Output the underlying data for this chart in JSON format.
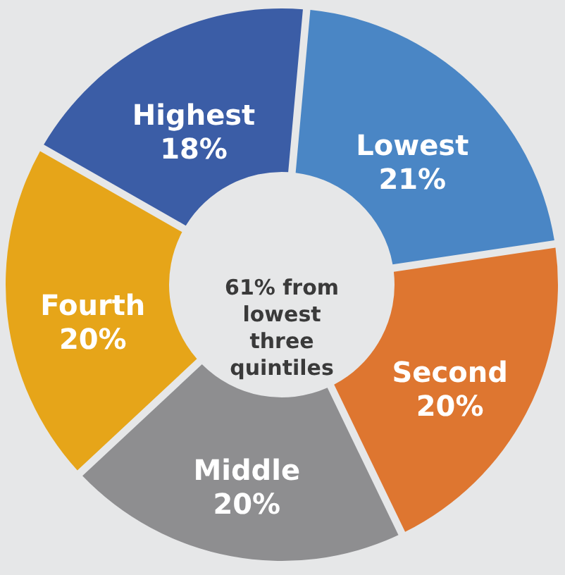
{
  "chart_data": {
    "type": "donut",
    "categories": [
      "Lowest",
      "Second",
      "Middle",
      "Fourth",
      "Highest"
    ],
    "values": [
      21,
      20,
      20,
      20,
      18
    ],
    "value_labels": [
      "21%",
      "20%",
      "20%",
      "20%",
      "18%"
    ],
    "colors": [
      "#4a86c5",
      "#de7630",
      "#8e8e90",
      "#e6a519",
      "#3b5da6"
    ],
    "annotations": [
      "61% from lowest three quintiles"
    ]
  }
}
